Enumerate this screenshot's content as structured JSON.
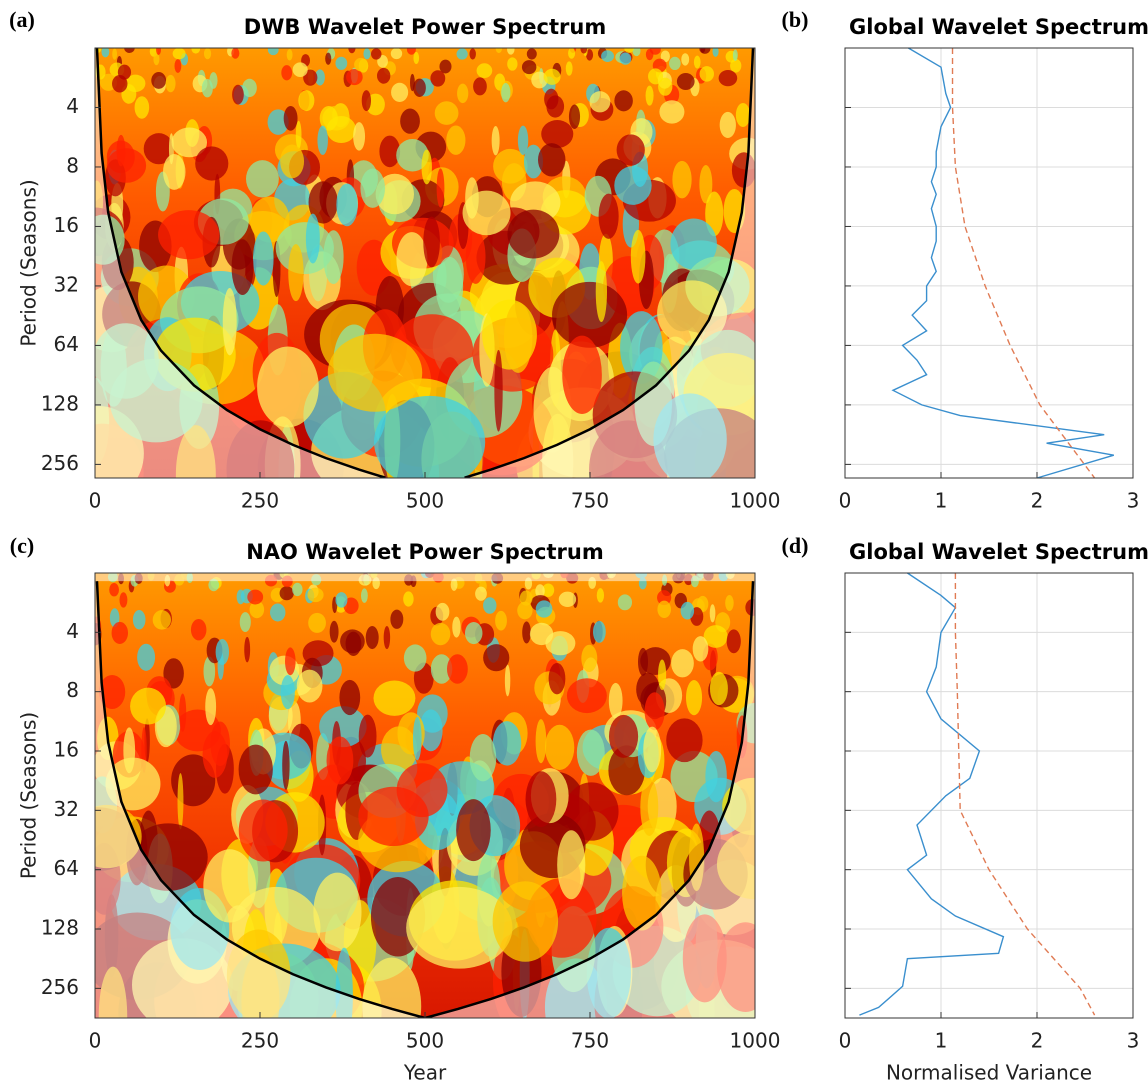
{
  "chart_data": [
    {
      "type": "heatmap",
      "panel_label": "(a)",
      "title": "DWB Wavelet Power Spectrum",
      "ylabel": "Period (Seasons)",
      "xlim": [
        0,
        1000
      ],
      "xticks": [
        0,
        250,
        500,
        750,
        1000
      ],
      "ylim": [
        2,
        300
      ],
      "yticks": [
        4,
        8,
        16,
        32,
        64,
        128,
        256
      ],
      "log_scale_y": 2,
      "y_reversed": true,
      "coi": {
        "color": "#000000",
        "x": [
          3,
          10,
          20,
          40,
          70,
          100,
          150,
          200,
          250,
          300,
          350,
          400,
          440,
          null,
          560,
          600,
          650,
          700,
          750,
          800,
          850,
          900,
          930,
          960,
          980,
          990,
          997
        ],
        "y": [
          2.0,
          6.8,
          13.6,
          27.2,
          47.6,
          68,
          102,
          136,
          170,
          204,
          238,
          272,
          299,
          null,
          299,
          272,
          238,
          204,
          170,
          136,
          102,
          68,
          47.6,
          27.2,
          13.6,
          6.8,
          2.0
        ]
      }
    },
    {
      "type": "line",
      "panel_label": "(b)",
      "title": "Global Wavelet Spectrum",
      "xlim": [
        0,
        3
      ],
      "xticks": [
        0,
        1,
        2,
        3
      ],
      "ylim": [
        2,
        300
      ],
      "yticks": [
        4,
        8,
        16,
        32,
        64,
        128,
        256
      ],
      "log_scale_y": 2,
      "y_reversed": true,
      "grid": true,
      "show_ytick_labels": false,
      "series": [
        {
          "color": "#3a8fce",
          "style": "solid",
          "x": [
            0.66,
            1.0,
            1.05,
            1.1,
            1.0,
            0.95,
            0.95,
            0.9,
            0.95,
            0.9,
            0.95,
            0.95,
            0.9,
            0.95,
            0.85,
            0.85,
            0.7,
            0.85,
            0.6,
            0.75,
            0.85,
            0.5,
            0.8,
            1.2,
            2.7,
            2.1,
            2.8,
            2.0
          ],
          "y": [
            2,
            2.5,
            3.4,
            4,
            5,
            6.7,
            8,
            9.5,
            11,
            13,
            16,
            19,
            23,
            27,
            32,
            38,
            45,
            54,
            64,
            76,
            90,
            108,
            128,
            145,
            181,
            200,
            230,
            300
          ]
        },
        {
          "color": "#e07b54",
          "style": "dashed",
          "x": [
            1.12,
            1.12,
            1.15,
            1.25,
            1.46,
            1.72,
            2.03,
            2.6
          ],
          "y": [
            2,
            4,
            8,
            16,
            32,
            64,
            128,
            300
          ]
        }
      ]
    },
    {
      "type": "heatmap",
      "panel_label": "(c)",
      "title": "NAO Wavelet Power Spectrum",
      "ylabel": "Period (Seasons)",
      "xlabel": "Year",
      "xlim": [
        0,
        1000
      ],
      "xticks": [
        0,
        250,
        500,
        750,
        1000
      ],
      "ylim": [
        2,
        362
      ],
      "yticks": [
        4,
        8,
        16,
        32,
        64,
        128,
        256
      ],
      "log_scale_y": 2,
      "y_reversed": true,
      "coi": {
        "color": "#000000",
        "x": [
          3,
          10,
          20,
          40,
          70,
          100,
          150,
          200,
          250,
          300,
          350,
          400,
          450,
          500,
          550,
          600,
          650,
          700,
          750,
          800,
          850,
          900,
          930,
          960,
          980,
          990,
          997
        ],
        "y": [
          2.2,
          7.2,
          14.5,
          29,
          50.7,
          72.4,
          108.6,
          144.8,
          181,
          217.2,
          253.4,
          289.6,
          325.8,
          362,
          325.8,
          289.6,
          253.4,
          217.2,
          181,
          144.8,
          108.6,
          72.4,
          50.7,
          29,
          14.5,
          7.2,
          2.2
        ]
      }
    },
    {
      "type": "line",
      "panel_label": "(d)",
      "title": "Global Wavelet Spectrum",
      "xlabel": "Normalised Variance",
      "xlim": [
        0,
        3
      ],
      "xticks": [
        0,
        1,
        2,
        3
      ],
      "ylim": [
        2,
        362
      ],
      "yticks": [
        4,
        8,
        16,
        32,
        64,
        128,
        256
      ],
      "log_scale_y": 2,
      "y_reversed": true,
      "grid": true,
      "show_ytick_labels": false,
      "series": [
        {
          "color": "#3a8fce",
          "style": "solid",
          "x": [
            0.65,
            1.0,
            1.15,
            1.0,
            0.95,
            0.85,
            1.0,
            1.4,
            1.3,
            1.05,
            0.75,
            0.85,
            0.65,
            0.9,
            1.15,
            1.65,
            1.6,
            0.65,
            0.6,
            0.35,
            0.15
          ],
          "y": [
            2,
            2.6,
            3,
            4,
            6,
            8,
            11,
            16,
            22,
            27,
            38,
            54,
            64,
            90,
            110,
            140,
            170,
            181,
            250,
            320,
            350
          ]
        },
        {
          "color": "#e07b54",
          "style": "dashed",
          "x": [
            1.15,
            1.15,
            1.17,
            1.2,
            1.5,
            1.9,
            2.45,
            2.6
          ],
          "y": [
            2,
            4,
            8,
            32,
            64,
            128,
            256,
            350
          ]
        }
      ]
    }
  ]
}
